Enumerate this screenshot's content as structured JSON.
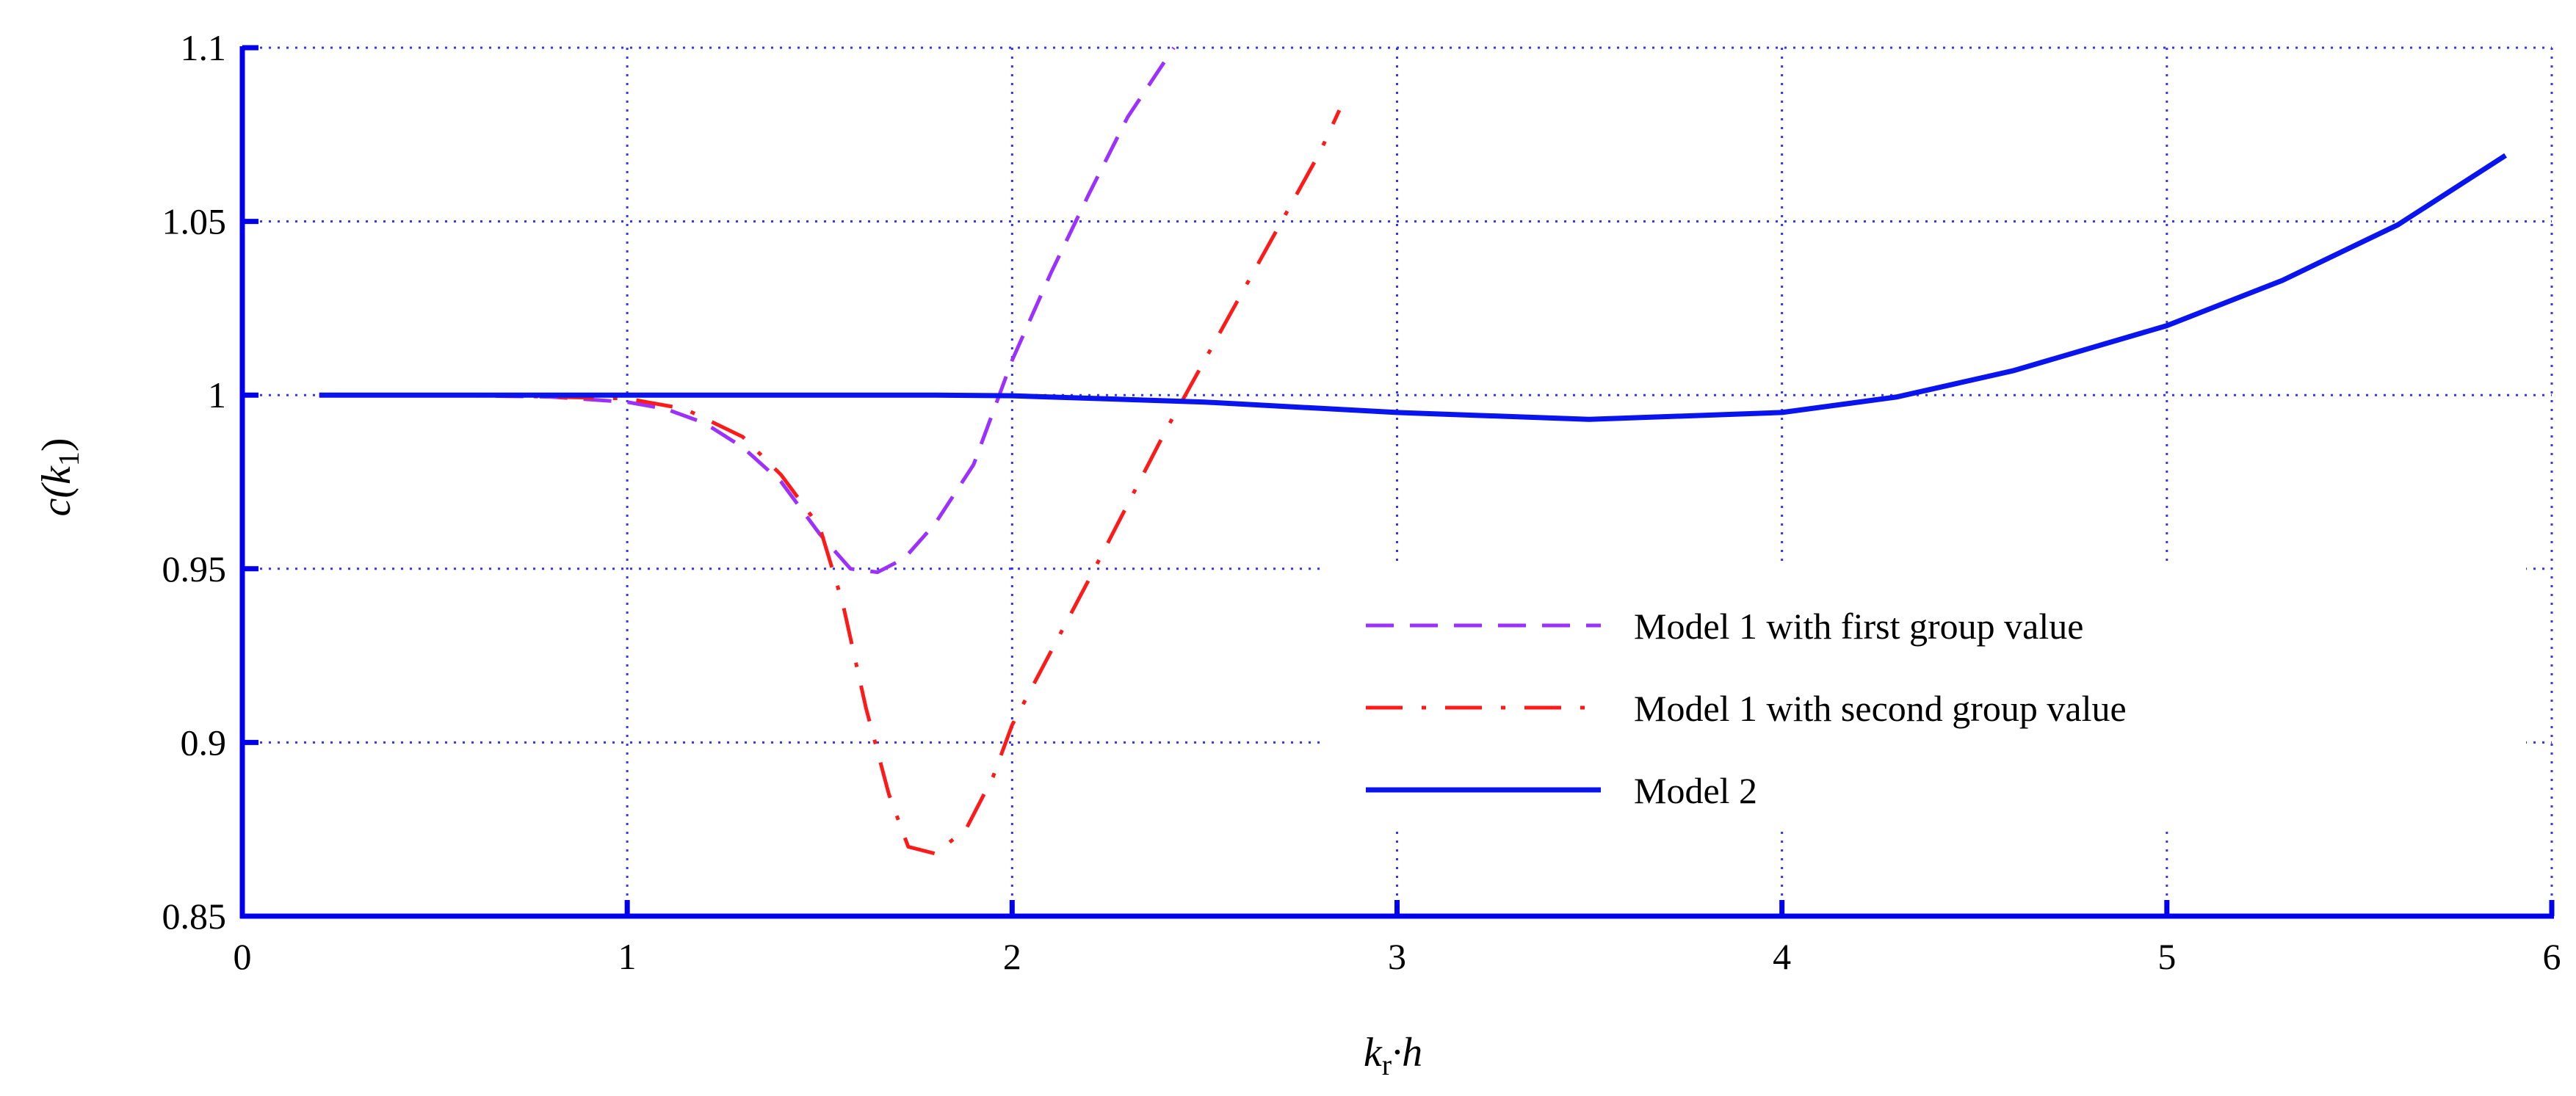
{
  "chart_data": {
    "type": "line",
    "xlabel": {
      "main": "k",
      "sub": "r",
      "rest": "·h"
    },
    "ylabel": {
      "prefix": "c(",
      "var": "k",
      "sub": "1",
      "suffix": ")"
    },
    "xlim": [
      0,
      6
    ],
    "ylim": [
      0.85,
      1.1
    ],
    "x_ticks": [
      0,
      1,
      2,
      3,
      4,
      5,
      6
    ],
    "x_tick_labels": [
      "0",
      "1",
      "2",
      "3",
      "4",
      "5",
      "6"
    ],
    "y_ticks": [
      0.85,
      0.9,
      0.95,
      1.0,
      1.05,
      1.1
    ],
    "y_tick_labels": [
      "0.85",
      "0.9",
      "0.95",
      "1",
      "1.05",
      "1.1"
    ],
    "grid": true,
    "legend_position": "lower-right",
    "colors": {
      "axis": "#0000ee",
      "grid": "#3333ff"
    },
    "series": [
      {
        "name": "Model 1 with first group value",
        "color": "#9b30ff",
        "dash": "dashed",
        "x": [
          0.2,
          0.5,
          0.8,
          1.0,
          1.1,
          1.2,
          1.3,
          1.4,
          1.5,
          1.58,
          1.65,
          1.72,
          1.8,
          1.9,
          2.0,
          2.1,
          2.2,
          2.3,
          2.42
        ],
        "y": [
          1.0,
          1.0,
          0.9995,
          0.998,
          0.996,
          0.992,
          0.985,
          0.975,
          0.96,
          0.95,
          0.949,
          0.953,
          0.963,
          0.98,
          1.01,
          1.035,
          1.058,
          1.08,
          1.1
        ]
      },
      {
        "name": "Model 1 with second group value",
        "color": "#ff1a1a",
        "dash": "dashdot",
        "x": [
          0.2,
          0.6,
          1.0,
          1.15,
          1.3,
          1.4,
          1.5,
          1.56,
          1.62,
          1.68,
          1.73,
          1.8,
          1.88,
          1.95,
          2.0,
          2.2,
          2.4,
          2.5,
          2.6,
          2.7,
          2.8,
          2.85
        ],
        "y": [
          1.0,
          1.0,
          0.999,
          0.996,
          0.988,
          0.977,
          0.962,
          0.94,
          0.91,
          0.885,
          0.87,
          0.868,
          0.875,
          0.89,
          0.905,
          0.947,
          0.99,
          1.01,
          1.03,
          1.05,
          1.07,
          1.082
        ]
      },
      {
        "name": "Model 2",
        "color": "#0a14ee",
        "dash": "solid",
        "x": [
          0.2,
          1.0,
          1.5,
          1.8,
          2.0,
          2.5,
          3.0,
          3.5,
          4.0,
          4.3,
          4.6,
          5.0,
          5.3,
          5.6,
          5.88
        ],
        "y": [
          1.0,
          1.0,
          1.0,
          1.0,
          0.9998,
          0.998,
          0.995,
          0.993,
          0.995,
          0.9995,
          1.007,
          1.02,
          1.033,
          1.049,
          1.069
        ]
      }
    ]
  }
}
